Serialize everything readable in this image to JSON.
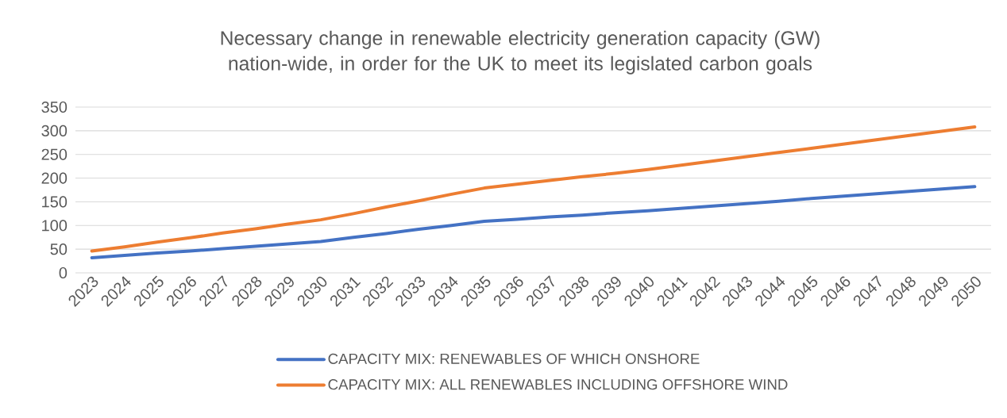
{
  "chart_data": {
    "type": "line",
    "title": "Necessary change in renewable electricity generation capacity (GW) nation-wide, in order for the UK to meet its legislated carbon goals",
    "categories": [
      "2023",
      "2024",
      "2025",
      "2026",
      "2027",
      "2028",
      "2029",
      "2030",
      "2031",
      "2032",
      "2033",
      "2034",
      "2035",
      "2036",
      "2037",
      "2038",
      "2039",
      "2040",
      "2041",
      "2042",
      "2043",
      "2044",
      "2045",
      "2046",
      "2047",
      "2048",
      "2049",
      "2050"
    ],
    "series": [
      {
        "name": "CAPACITY MIX: RENEWABLES OF WHICH ONSHORE",
        "color": "#4472c4",
        "values": [
          32,
          37,
          42,
          46,
          51,
          56,
          61,
          66,
          75,
          83,
          92,
          100,
          109,
          113,
          118,
          122,
          127,
          131,
          136,
          141,
          146,
          151,
          157,
          162,
          167,
          172,
          177,
          182
        ]
      },
      {
        "name": "CAPACITY MIX: ALL RENEWABLES INCLUDING OFFSHORE WIND",
        "color": "#ed7d31",
        "values": [
          46,
          55,
          65,
          74,
          84,
          93,
          103,
          112,
          125,
          139,
          152,
          166,
          179,
          187,
          195,
          203,
          210,
          218,
          227,
          236,
          245,
          254,
          263,
          272,
          281,
          290,
          299,
          308
        ]
      }
    ],
    "ylim": [
      0,
      350
    ],
    "yticks": [
      0,
      50,
      100,
      150,
      200,
      250,
      300,
      350
    ],
    "grid": "y",
    "legend": "bottom",
    "marker": "none",
    "line_style": "solid"
  }
}
